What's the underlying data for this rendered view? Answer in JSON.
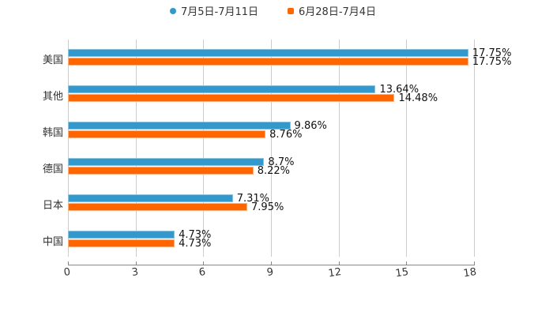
{
  "chart_data": {
    "type": "bar",
    "orientation": "horizontal",
    "title": "",
    "xlabel": "",
    "ylabel": "",
    "categories": [
      "美国",
      "其他",
      "韩国",
      "德国",
      "日本",
      "中国"
    ],
    "series": [
      {
        "name": "7月5日-7月11日",
        "color": "#3399cc",
        "values": [
          17.75,
          13.64,
          9.86,
          8.7,
          7.31,
          4.73
        ],
        "labels": [
          "17.75%",
          "13.64%",
          "9.86%",
          "8.7%",
          "7.31%",
          "4.73%"
        ]
      },
      {
        "name": "6月28日-7月4日",
        "color": "#ff6600",
        "values": [
          17.75,
          14.48,
          8.76,
          8.22,
          7.95,
          4.73
        ],
        "labels": [
          "17.75%",
          "14.48%",
          "8.76%",
          "8.22%",
          "7.95%",
          "4.73%"
        ]
      }
    ],
    "xlim": [
      0,
      18
    ],
    "xticks": [
      "0",
      "3",
      "6",
      "9",
      "12",
      "15",
      "18"
    ],
    "grid": true,
    "legend_position": "top"
  },
  "legend": {
    "items": [
      {
        "label": "7月5日-7月11日",
        "color": "#3399cc",
        "marker": "circle"
      },
      {
        "label": "6月28日-7月4日",
        "color": "#ff6600",
        "marker": "square"
      }
    ]
  }
}
